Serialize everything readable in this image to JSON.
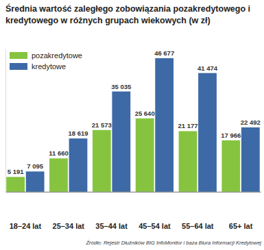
{
  "chart_data": {
    "type": "bar",
    "title": "Średnia wartość zaległego zobowiązania pozakredytowego i kredytowego w różnych grupach wiekowych (w zł)",
    "source": "Źródło: Rejestr Dłużników BIG InfoMonitor i baza Biura Informacji Kredytowej",
    "categories": [
      "18–24 lat",
      "25–34 lat",
      "35–44 lat",
      "45–54 lat",
      "55–64 lat",
      "65+ lat"
    ],
    "series": [
      {
        "name": "pozakredytowe",
        "color": "#86c440",
        "values": [
          5191,
          11660,
          21573,
          25640,
          21177,
          17966
        ],
        "value_labels": [
          "5 191",
          "11 660",
          "21 573",
          "25 640",
          "21 177",
          "17 966"
        ]
      },
      {
        "name": "kredytowe",
        "color": "#3d6aa6",
        "values": [
          7095,
          18619,
          35035,
          46677,
          41474,
          22492
        ],
        "value_labels": [
          "7 095",
          "18 619",
          "35 035",
          "46 677",
          "41 474",
          "22 492"
        ]
      }
    ],
    "ylim": [
      0,
      50000
    ],
    "data_labels": true,
    "tick_labels": "x",
    "legend": "upper left",
    "grid": false
  }
}
